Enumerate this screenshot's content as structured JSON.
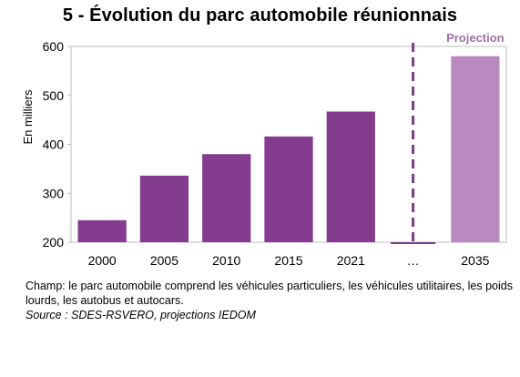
{
  "chart_data": {
    "type": "bar",
    "title": "5 - Évolution du parc automobile réunionnais",
    "ylabel": "En milliers",
    "xlabel": "",
    "ylim": [
      200,
      600
    ],
    "yticks": [
      200,
      300,
      400,
      500,
      600
    ],
    "categories": [
      "2000",
      "2005",
      "2010",
      "2015",
      "2021",
      "…",
      "2035"
    ],
    "values": [
      245,
      336,
      380,
      416,
      467,
      null,
      580
    ],
    "projection_label": "Projection",
    "projection_categories": [
      "2035"
    ],
    "grid": false,
    "legend": "none"
  },
  "colors": {
    "bar": "#833c8e",
    "projection_bar": "#b98abf",
    "projection_text": "#a270a8",
    "divider": "#7a3d86",
    "axis": "#bdbdbd"
  },
  "notes": {
    "champ": "Champ:  le parc automobile comprend les véhicules particuliers, les véhicules utilitaires, les poids lourds, les autobus et autocars.",
    "source": "Source : SDES-RSVERO, projections IEDOM"
  }
}
